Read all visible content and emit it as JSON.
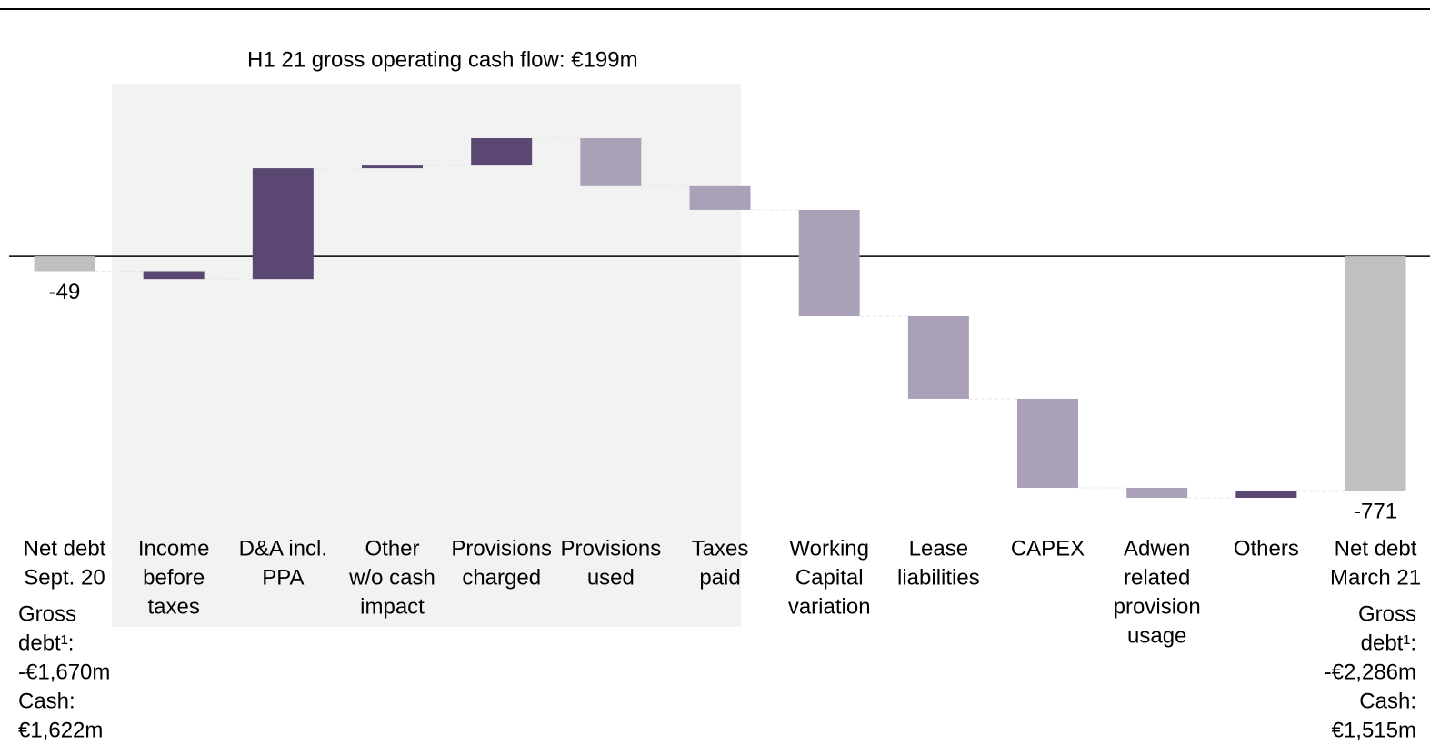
{
  "chart_data": {
    "type": "waterfall",
    "annotation": "H1 21 gross operating cash flow: €199m",
    "categories": [
      [
        "Net debt",
        "Sept. 20"
      ],
      [
        "Income",
        "before",
        "taxes"
      ],
      [
        "D&A incl.",
        "PPA"
      ],
      [
        "Other",
        "w/o cash",
        "impact"
      ],
      [
        "Provisions",
        "charged"
      ],
      [
        "Provisions",
        "used"
      ],
      [
        "Taxes",
        "paid"
      ],
      [
        "Working",
        "Capital",
        "variation"
      ],
      [
        "Lease",
        "liabilities"
      ],
      [
        "CAPEX"
      ],
      [
        "Adwen",
        "related",
        "provision",
        "usage"
      ],
      [
        "Others"
      ],
      [
        "Net debt",
        "March 21"
      ]
    ],
    "values": [
      -49,
      -26,
      365,
      9,
      90,
      -158,
      -78,
      -350,
      -272,
      -293,
      -33,
      24,
      -771
    ],
    "measures": [
      "absolute",
      "relative",
      "relative",
      "relative",
      "relative",
      "relative",
      "relative",
      "relative",
      "relative",
      "relative",
      "relative",
      "relative",
      "absolute"
    ],
    "colors": [
      "#c0c0c0",
      "#5a4872",
      "#5a4872",
      "#5a4872",
      "#5a4872",
      "#aaa0b8",
      "#aaa0b8",
      "#aaa0b8",
      "#aaa0b8",
      "#aaa0b8",
      "#aaa0b8",
      "#5a4872",
      "#c0c0c0"
    ],
    "notes_left": [
      "Gross",
      "debt¹:",
      "-€1,670m",
      "Cash:",
      "€1,622m"
    ],
    "notes_right": [
      "Gross",
      "debt¹:",
      "-€2,286m",
      "Cash:",
      "€1,515m"
    ]
  }
}
